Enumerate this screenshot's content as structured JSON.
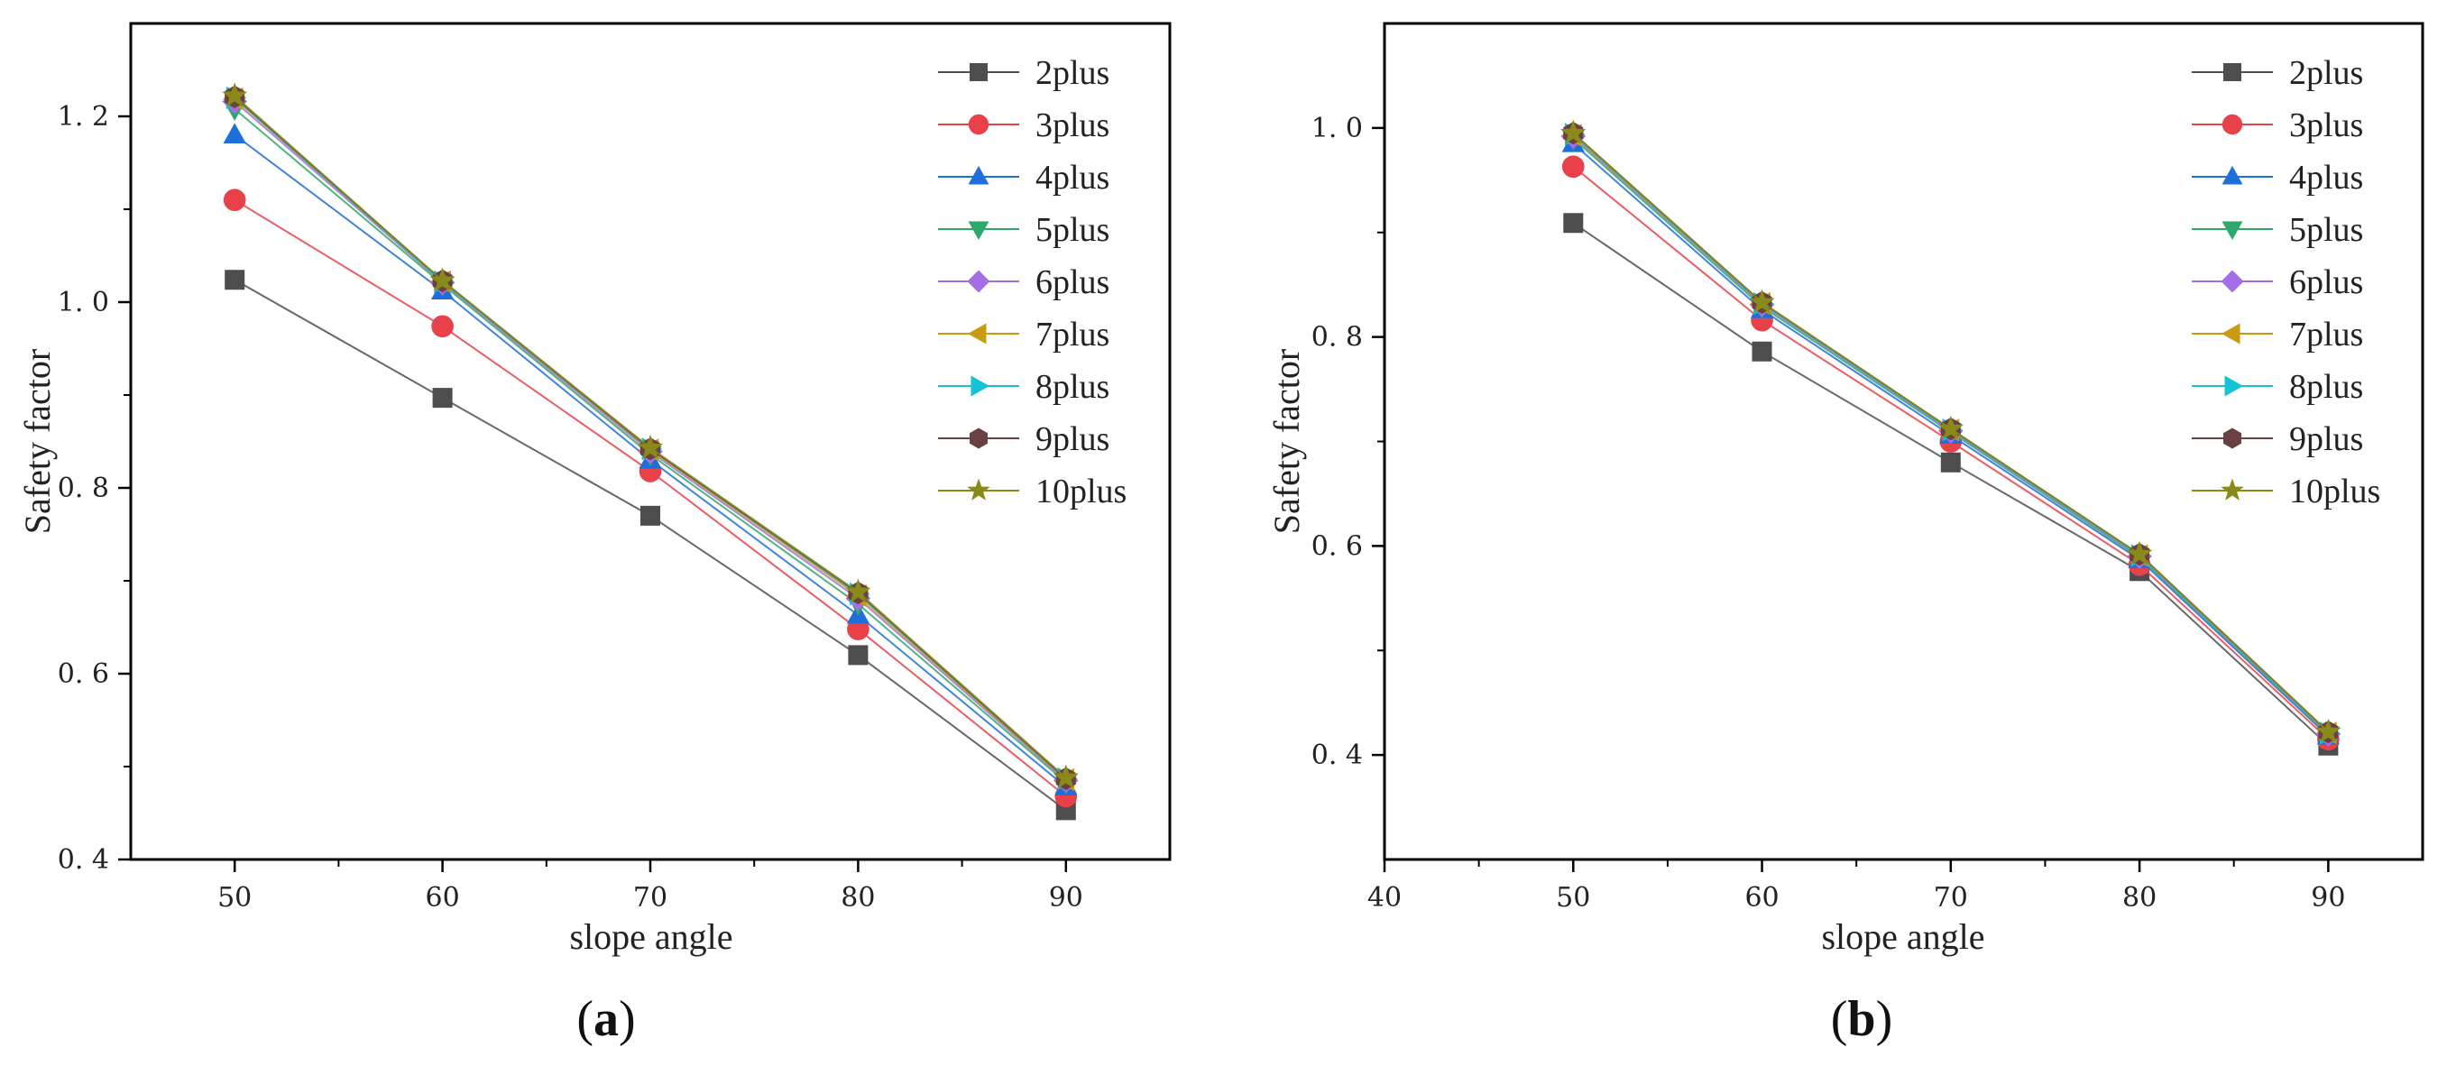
{
  "chart_data": [
    {
      "type": "line",
      "panel_label": "(a)",
      "xlabel": "slope angle",
      "ylabel": "Safety factor",
      "xlim": [
        45,
        95
      ],
      "ylim": [
        0.4,
        1.3
      ],
      "xticks": [
        50,
        60,
        70,
        80,
        90
      ],
      "xtick_labels": [
        "50",
        "60",
        "70",
        "80",
        "90"
      ],
      "yticks": [
        0.4,
        0.6,
        0.8,
        1.0,
        1.2
      ],
      "ytick_labels": [
        "0. 4",
        "0. 6",
        "0. 8",
        "1. 0",
        "1. 2"
      ],
      "legend_position": "top-right",
      "x": [
        50,
        60,
        70,
        80,
        90
      ],
      "series": [
        {
          "name": "2plus",
          "color": "#4d4d4d",
          "marker": "square",
          "values": [
            1.024,
            0.897,
            0.77,
            0.62,
            0.453
          ]
        },
        {
          "name": "3plus",
          "color": "#e8414a",
          "marker": "circle",
          "values": [
            1.11,
            0.974,
            0.818,
            0.648,
            0.468
          ]
        },
        {
          "name": "4plus",
          "color": "#1e6fd9",
          "marker": "triangle-up",
          "values": [
            1.18,
            1.012,
            0.83,
            0.663,
            0.478
          ]
        },
        {
          "name": "5plus",
          "color": "#2ea86a",
          "marker": "triangle-down",
          "values": [
            1.208,
            1.019,
            0.836,
            0.675,
            0.483
          ]
        },
        {
          "name": "6plus",
          "color": "#a46ee6",
          "marker": "diamond",
          "values": [
            1.216,
            1.021,
            0.839,
            0.681,
            0.485
          ]
        },
        {
          "name": "7plus",
          "color": "#c99a10",
          "marker": "triangle-left",
          "values": [
            1.219,
            1.022,
            0.841,
            0.684,
            0.486
          ]
        },
        {
          "name": "8plus",
          "color": "#14c3d6",
          "marker": "triangle-right",
          "values": [
            1.22,
            1.022,
            0.842,
            0.686,
            0.487
          ]
        },
        {
          "name": "9plus",
          "color": "#6b4040",
          "marker": "hexagon",
          "values": [
            1.221,
            1.023,
            0.842,
            0.687,
            0.487
          ]
        },
        {
          "name": "10plus",
          "color": "#8a8a1a",
          "marker": "star",
          "values": [
            1.222,
            1.023,
            0.843,
            0.688,
            0.488
          ]
        }
      ]
    },
    {
      "type": "line",
      "panel_label": "(b)",
      "xlabel": "slope angle",
      "ylabel": "Safety factor",
      "xlim": [
        40,
        95
      ],
      "ylim": [
        0.3,
        1.1
      ],
      "xticks": [
        40,
        50,
        60,
        70,
        80,
        90
      ],
      "xtick_labels": [
        "40",
        "50",
        "60",
        "70",
        "80",
        "90"
      ],
      "yticks": [
        0.4,
        0.6,
        0.8,
        1.0
      ],
      "ytick_labels": [
        "0. 4",
        "0. 6",
        "0. 8",
        "1. 0"
      ],
      "legend_position": "top-right",
      "x": [
        50,
        60,
        70,
        80,
        90
      ],
      "series": [
        {
          "name": "2plus",
          "color": "#4d4d4d",
          "marker": "square",
          "values": [
            0.909,
            0.786,
            0.68,
            0.576,
            0.409
          ]
        },
        {
          "name": "3plus",
          "color": "#e8414a",
          "marker": "circle",
          "values": [
            0.963,
            0.816,
            0.7,
            0.582,
            0.415
          ]
        },
        {
          "name": "4plus",
          "color": "#1e6fd9",
          "marker": "triangle-up",
          "values": [
            0.985,
            0.826,
            0.706,
            0.587,
            0.418
          ]
        },
        {
          "name": "5plus",
          "color": "#2ea86a",
          "marker": "triangle-down",
          "values": [
            0.99,
            0.829,
            0.709,
            0.589,
            0.419
          ]
        },
        {
          "name": "6plus",
          "color": "#a46ee6",
          "marker": "diamond",
          "values": [
            0.992,
            0.831,
            0.71,
            0.59,
            0.42
          ]
        },
        {
          "name": "7plus",
          "color": "#c99a10",
          "marker": "triangle-left",
          "values": [
            0.993,
            0.832,
            0.711,
            0.591,
            0.421
          ]
        },
        {
          "name": "8plus",
          "color": "#14c3d6",
          "marker": "triangle-right",
          "values": [
            0.994,
            0.832,
            0.711,
            0.591,
            0.421
          ]
        },
        {
          "name": "9plus",
          "color": "#6b4040",
          "marker": "hexagon",
          "values": [
            0.995,
            0.833,
            0.712,
            0.592,
            0.422
          ]
        },
        {
          "name": "10plus",
          "color": "#8a8a1a",
          "marker": "star",
          "values": [
            0.995,
            0.833,
            0.712,
            0.592,
            0.422
          ]
        }
      ]
    }
  ]
}
